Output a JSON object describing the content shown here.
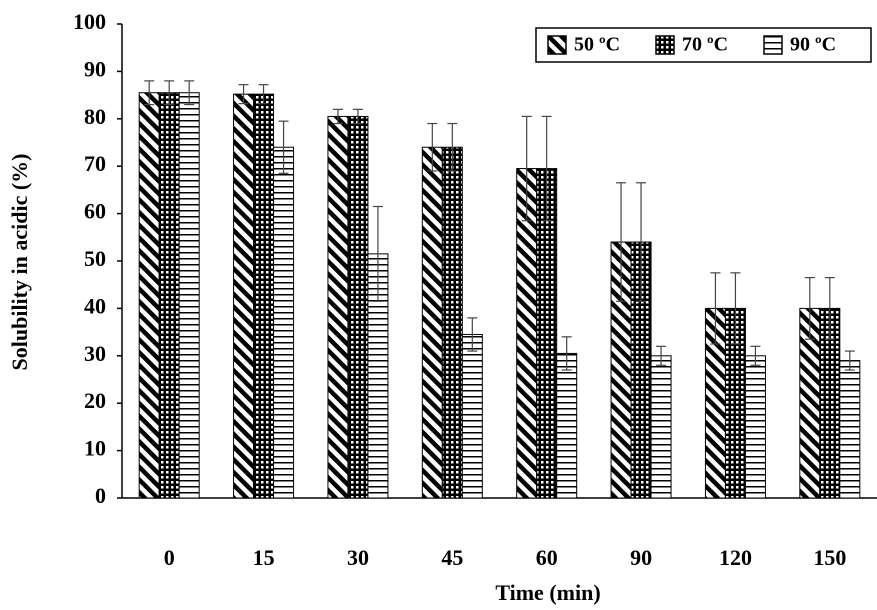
{
  "chart_data": {
    "type": "bar",
    "x_label": "Time (min)",
    "y_label": "Solubility in acidic (%)",
    "categories": [
      "0",
      "15",
      "30",
      "45",
      "60",
      "90",
      "120",
      "150"
    ],
    "series": [
      {
        "name": "50 ºC",
        "color": "#000000",
        "hatch": "diagonal",
        "values": [
          85.5,
          85.2,
          80.5,
          74,
          69.5,
          54,
          40,
          40
        ],
        "errors": [
          2.5,
          2,
          1.5,
          5,
          11,
          12.5,
          7.5,
          6.5
        ]
      },
      {
        "name": "70 ºC",
        "color": "#000000",
        "hatch": "dots",
        "values": [
          85.5,
          85.2,
          80.5,
          74,
          69.5,
          54,
          40,
          40
        ],
        "errors": [
          2.5,
          2,
          1.5,
          5,
          11,
          12.5,
          7.5,
          6.5
        ]
      },
      {
        "name": "90 ºC",
        "color": "#000000",
        "hatch": "horizontal",
        "values": [
          85.5,
          74,
          51.5,
          34.5,
          30.5,
          30,
          30,
          29
        ],
        "errors": [
          2.5,
          5.5,
          10,
          3.5,
          3.5,
          2,
          2,
          2
        ]
      }
    ],
    "ylim": [
      0,
      100
    ],
    "yticks": [
      0,
      10,
      20,
      30,
      40,
      50,
      60,
      70,
      80,
      90,
      100
    ],
    "grid": false,
    "legend": "upper right"
  }
}
